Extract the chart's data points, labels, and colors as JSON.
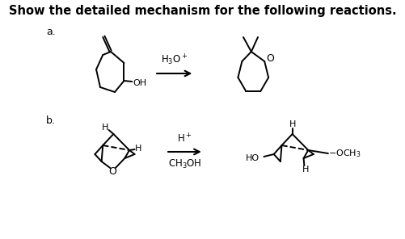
{
  "title": "Show the detailed mechanism for the following reactions.",
  "title_fontsize": 10.5,
  "background_color": "#ffffff",
  "label_a": "a.",
  "label_b": "b.",
  "reagent_a": "$\\mathrm{H_3O^+}$",
  "reagent_b1": "$\\mathrm{H^+}$",
  "reagent_b2": "$\\mathrm{CH_3OH}$",
  "text_color": "#000000",
  "lw": 1.4
}
